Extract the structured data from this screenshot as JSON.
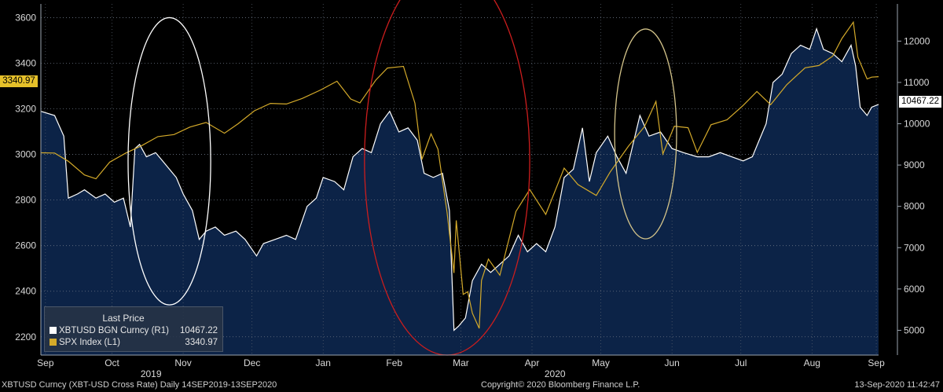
{
  "chart_data": {
    "type": "area",
    "x_axis": {
      "months": [
        "Sep",
        "Oct",
        "Nov",
        "Dec",
        "Jan",
        "Feb",
        "Mar",
        "Apr",
        "May",
        "Jun",
        "Jul",
        "Aug",
        "Sep"
      ],
      "years": [
        "2019",
        "2020"
      ],
      "range": [
        "2019-09-14",
        "2020-09-13"
      ]
    },
    "left_axis": {
      "ticks": [
        "2200",
        "2400",
        "2600",
        "2800",
        "3000",
        "3200",
        "3400",
        "3600"
      ],
      "ylim": [
        2120,
        3660
      ]
    },
    "right_axis": {
      "ticks": [
        "5000",
        "6000",
        "7000",
        "8000",
        "9000",
        "10000",
        "11000",
        "12000"
      ],
      "ylim": [
        4400,
        12900
      ]
    },
    "series": [
      {
        "name": "XBTUSD BGN Curncy (R1)",
        "axis": "right",
        "color": "#ffffff",
        "fill": "#0c2347",
        "last_value": "10467.22",
        "points": [
          [
            "2019-09-14",
            10300
          ],
          [
            "2019-09-20",
            10200
          ],
          [
            "2019-09-24",
            9700
          ],
          [
            "2019-09-26",
            8200
          ],
          [
            "2019-09-30",
            8300
          ],
          [
            "2019-10-03",
            8400
          ],
          [
            "2019-10-08",
            8200
          ],
          [
            "2019-10-12",
            8300
          ],
          [
            "2019-10-16",
            8100
          ],
          [
            "2019-10-20",
            8200
          ],
          [
            "2019-10-23",
            7500
          ],
          [
            "2019-10-25",
            9400
          ],
          [
            "2019-10-27",
            9500
          ],
          [
            "2019-10-30",
            9200
          ],
          [
            "2019-11-03",
            9300
          ],
          [
            "2019-11-06",
            9100
          ],
          [
            "2019-11-09",
            8900
          ],
          [
            "2019-11-12",
            8700
          ],
          [
            "2019-11-15",
            8300
          ],
          [
            "2019-11-19",
            7900
          ],
          [
            "2019-11-22",
            7200
          ],
          [
            "2019-11-25",
            7400
          ],
          [
            "2019-11-29",
            7500
          ],
          [
            "2019-12-03",
            7300
          ],
          [
            "2019-12-08",
            7400
          ],
          [
            "2019-12-12",
            7200
          ],
          [
            "2019-12-17",
            6800
          ],
          [
            "2019-12-20",
            7100
          ],
          [
            "2019-12-25",
            7200
          ],
          [
            "2019-12-30",
            7300
          ],
          [
            "2020-01-03",
            7200
          ],
          [
            "2020-01-08",
            8000
          ],
          [
            "2020-01-12",
            8200
          ],
          [
            "2020-01-15",
            8700
          ],
          [
            "2020-01-20",
            8600
          ],
          [
            "2020-01-24",
            8400
          ],
          [
            "2020-01-28",
            9200
          ],
          [
            "2020-02-01",
            9400
          ],
          [
            "2020-02-05",
            9300
          ],
          [
            "2020-02-09",
            10000
          ],
          [
            "2020-02-13",
            10300
          ],
          [
            "2020-02-17",
            9800
          ],
          [
            "2020-02-21",
            9900
          ],
          [
            "2020-02-25",
            9600
          ],
          [
            "2020-02-28",
            8800
          ],
          [
            "2020-03-03",
            8700
          ],
          [
            "2020-03-07",
            8800
          ],
          [
            "2020-03-10",
            7900
          ],
          [
            "2020-03-12",
            5000
          ],
          [
            "2020-03-14",
            5100
          ],
          [
            "2020-03-17",
            5300
          ],
          [
            "2020-03-20",
            6200
          ],
          [
            "2020-03-24",
            6600
          ],
          [
            "2020-03-28",
            6400
          ],
          [
            "2020-04-01",
            6600
          ],
          [
            "2020-04-05",
            6800
          ],
          [
            "2020-04-09",
            7300
          ],
          [
            "2020-04-13",
            6900
          ],
          [
            "2020-04-17",
            7100
          ],
          [
            "2020-04-21",
            6900
          ],
          [
            "2020-04-25",
            7500
          ],
          [
            "2020-04-29",
            8700
          ],
          [
            "2020-05-03",
            8900
          ],
          [
            "2020-05-07",
            9900
          ],
          [
            "2020-05-10",
            8600
          ],
          [
            "2020-05-13",
            9300
          ],
          [
            "2020-05-18",
            9700
          ],
          [
            "2020-05-22",
            9200
          ],
          [
            "2020-05-26",
            8800
          ],
          [
            "2020-06-01",
            10200
          ],
          [
            "2020-06-05",
            9700
          ],
          [
            "2020-06-10",
            9800
          ],
          [
            "2020-06-15",
            9400
          ],
          [
            "2020-06-20",
            9300
          ],
          [
            "2020-06-26",
            9200
          ],
          [
            "2020-07-01",
            9200
          ],
          [
            "2020-07-06",
            9300
          ],
          [
            "2020-07-11",
            9200
          ],
          [
            "2020-07-16",
            9100
          ],
          [
            "2020-07-20",
            9200
          ],
          [
            "2020-07-23",
            9600
          ],
          [
            "2020-07-26",
            10000
          ],
          [
            "2020-07-29",
            11000
          ],
          [
            "2020-08-02",
            11200
          ],
          [
            "2020-08-06",
            11700
          ],
          [
            "2020-08-10",
            11900
          ],
          [
            "2020-08-14",
            11800
          ],
          [
            "2020-08-17",
            12300
          ],
          [
            "2020-08-20",
            11800
          ],
          [
            "2020-08-24",
            11700
          ],
          [
            "2020-08-28",
            11500
          ],
          [
            "2020-09-01",
            11900
          ],
          [
            "2020-09-03",
            11400
          ],
          [
            "2020-09-05",
            10400
          ],
          [
            "2020-09-08",
            10200
          ],
          [
            "2020-09-10",
            10400
          ],
          [
            "2020-09-13",
            10467.22
          ]
        ]
      },
      {
        "name": "SPX Index (L1)",
        "axis": "left",
        "color": "#d4aa2a",
        "last_value": "3340.97",
        "points": [
          [
            "2019-09-14",
            3007
          ],
          [
            "2019-09-20",
            3006
          ],
          [
            "2019-09-26",
            2970
          ],
          [
            "2019-10-03",
            2910
          ],
          [
            "2019-10-08",
            2893
          ],
          [
            "2019-10-14",
            2966
          ],
          [
            "2019-10-21",
            3006
          ],
          [
            "2019-10-28",
            3039
          ],
          [
            "2019-11-04",
            3078
          ],
          [
            "2019-11-11",
            3087
          ],
          [
            "2019-11-18",
            3120
          ],
          [
            "2019-11-25",
            3140
          ],
          [
            "2019-12-03",
            3093
          ],
          [
            "2019-12-09",
            3135
          ],
          [
            "2019-12-16",
            3191
          ],
          [
            "2019-12-23",
            3224
          ],
          [
            "2019-12-30",
            3221
          ],
          [
            "2020-01-06",
            3246
          ],
          [
            "2020-01-14",
            3283
          ],
          [
            "2020-01-21",
            3321
          ],
          [
            "2020-01-27",
            3243
          ],
          [
            "2020-01-31",
            3226
          ],
          [
            "2020-02-07",
            3327
          ],
          [
            "2020-02-12",
            3379
          ],
          [
            "2020-02-19",
            3386
          ],
          [
            "2020-02-24",
            3225
          ],
          [
            "2020-02-27",
            2978
          ],
          [
            "2020-03-02",
            3090
          ],
          [
            "2020-03-05",
            3023
          ],
          [
            "2020-03-09",
            2746
          ],
          [
            "2020-03-12",
            2480
          ],
          [
            "2020-03-13",
            2711
          ],
          [
            "2020-03-16",
            2386
          ],
          [
            "2020-03-18",
            2398
          ],
          [
            "2020-03-20",
            2304
          ],
          [
            "2020-03-23",
            2237
          ],
          [
            "2020-03-24",
            2447
          ],
          [
            "2020-03-27",
            2541
          ],
          [
            "2020-04-01",
            2470
          ],
          [
            "2020-04-08",
            2750
          ],
          [
            "2020-04-14",
            2846
          ],
          [
            "2020-04-21",
            2737
          ],
          [
            "2020-04-29",
            2940
          ],
          [
            "2020-05-05",
            2868
          ],
          [
            "2020-05-13",
            2820
          ],
          [
            "2020-05-19",
            2922
          ],
          [
            "2020-05-27",
            3036
          ],
          [
            "2020-06-03",
            3122
          ],
          [
            "2020-06-08",
            3232
          ],
          [
            "2020-06-11",
            3002
          ],
          [
            "2020-06-16",
            3124
          ],
          [
            "2020-06-22",
            3117
          ],
          [
            "2020-06-26",
            3009
          ],
          [
            "2020-07-02",
            3130
          ],
          [
            "2020-07-09",
            3152
          ],
          [
            "2020-07-16",
            3215
          ],
          [
            "2020-07-22",
            3276
          ],
          [
            "2020-07-28",
            3218
          ],
          [
            "2020-08-04",
            3306
          ],
          [
            "2020-08-12",
            3380
          ],
          [
            "2020-08-18",
            3390
          ],
          [
            "2020-08-24",
            3431
          ],
          [
            "2020-08-28",
            3508
          ],
          [
            "2020-09-02",
            3580
          ],
          [
            "2020-09-04",
            3426
          ],
          [
            "2020-09-08",
            3331
          ],
          [
            "2020-09-10",
            3339
          ],
          [
            "2020-09-13",
            3340.97
          ]
        ]
      }
    ],
    "annotations": [
      {
        "shape": "ellipse",
        "color": "#ffffff",
        "from": "2019-10-22",
        "to": "2019-11-27",
        "left_range": [
          2340,
          3600
        ]
      },
      {
        "shape": "ellipse",
        "color": "#cc1d1d",
        "from": "2020-02-02",
        "to": "2020-04-14",
        "left_range": [
          2120,
          3830
        ]
      },
      {
        "shape": "ellipse",
        "color": "#d4c48a",
        "from": "2020-05-21",
        "to": "2020-06-17",
        "left_range": [
          2630,
          3550
        ]
      }
    ],
    "legend": {
      "title": "Last Price",
      "placement": "bottom-left",
      "rows": [
        {
          "label": "XBTUSD BGN Curncy  (R1)",
          "value": "10467.22",
          "color": "#ffffff"
        },
        {
          "label": "SPX Index  (L1)",
          "value": "3340.97",
          "color": "#d4aa2a"
        }
      ]
    },
    "last_price_tags": {
      "left": "3340.97",
      "right": "10467.22"
    }
  },
  "footer": {
    "left": "XBTUSD Curncy (XBT-USD Cross Rate)  Daily 14SEP2019-13SEP2020",
    "center": "Copyright© 2020 Bloomberg Finance L.P.",
    "right": "13-Sep-2020 11:42:47"
  }
}
